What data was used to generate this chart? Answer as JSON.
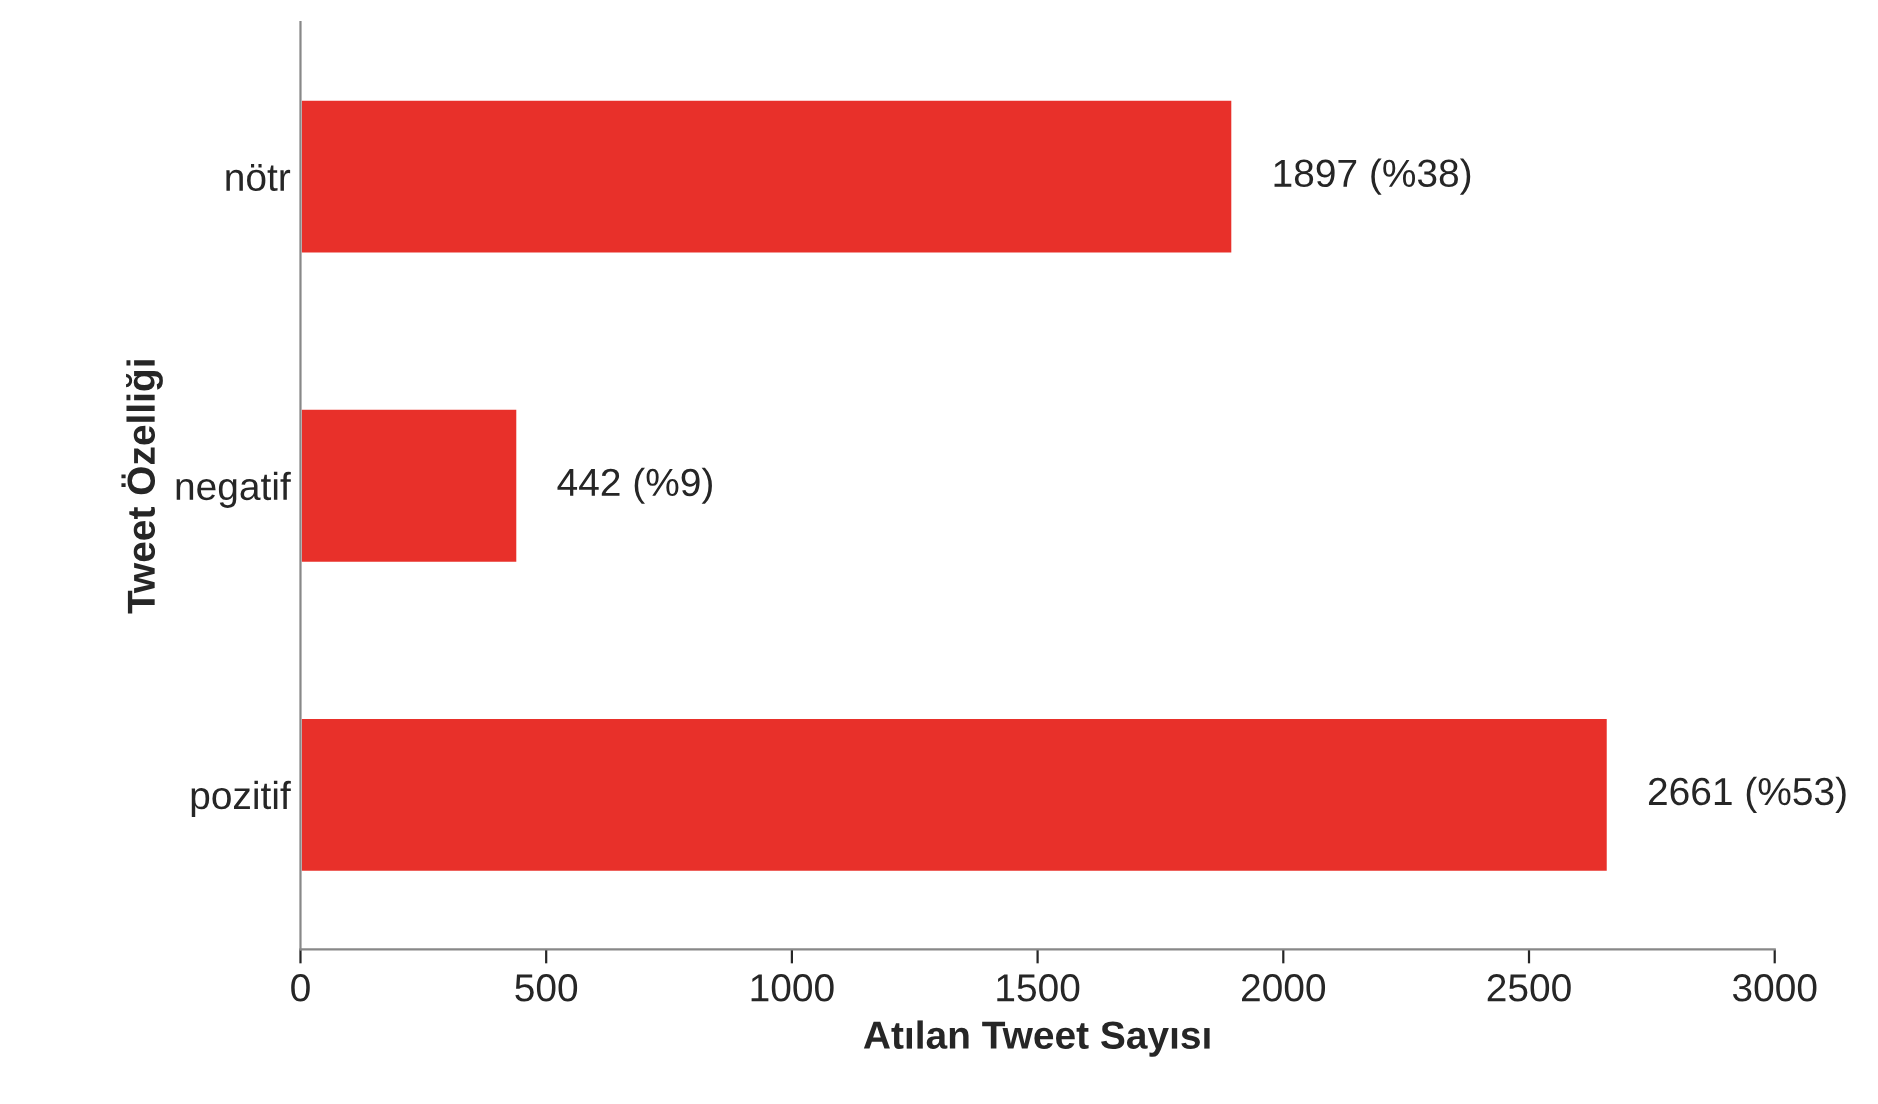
{
  "chart_data": {
    "type": "bar",
    "orientation": "horizontal",
    "xlabel": "Atılan Tweet Sayısı",
    "ylabel": "Tweet Özelliği",
    "categories": [
      "nötr",
      "negatif",
      "pozitif"
    ],
    "values": [
      1897,
      442,
      2661
    ],
    "value_labels": [
      "1897 (%38)",
      "442 (%9)",
      "2661 (%53)"
    ],
    "color": "#e8302a",
    "xlim": [
      0,
      3000
    ],
    "xticks": [
      0,
      500,
      1000,
      1500,
      2000,
      2500,
      3000
    ],
    "grid": false,
    "legend": false
  }
}
